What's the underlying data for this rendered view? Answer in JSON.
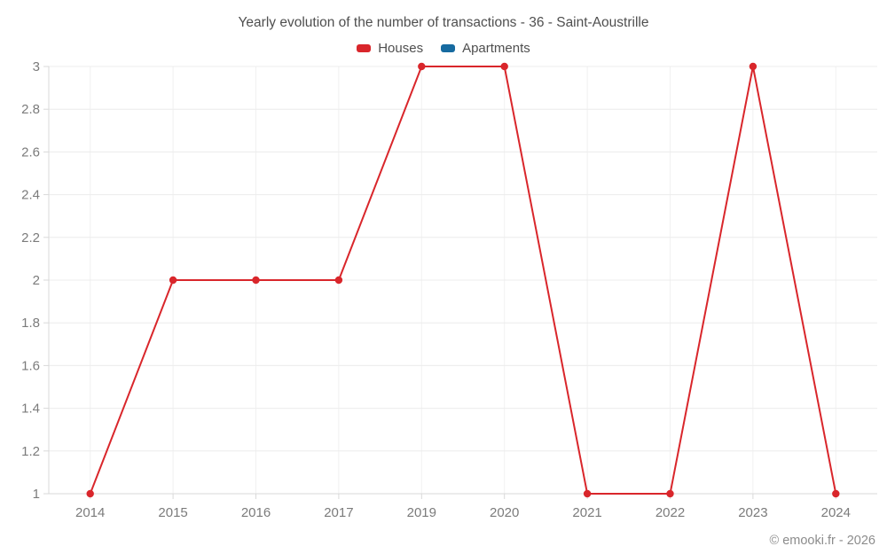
{
  "title": "Yearly evolution of the number of transactions - 36 - Saint-Aoustrille",
  "legend": [
    {
      "label": "Houses",
      "color": "#d9262b"
    },
    {
      "label": "Apartments",
      "color": "#166aa0"
    }
  ],
  "watermark": "© emooki.fr - 2026",
  "colors": {
    "houses": "#d9262b",
    "apartments": "#166aa0",
    "grid": "#ececec",
    "grid_vertical": "#f1f1f1",
    "axis": "#d9d9d9",
    "tick_text": "#7b7b7b"
  },
  "chart_data": {
    "type": "line",
    "title": "Yearly evolution of the number of transactions - 36 - Saint-Aoustrille",
    "categories": [
      "2014",
      "2015",
      "2016",
      "2017",
      "2019",
      "2020",
      "2021",
      "2022",
      "2023",
      "2024"
    ],
    "series": [
      {
        "name": "Houses",
        "color": "#d9262b",
        "values": [
          1,
          2,
          2,
          2,
          3,
          3,
          1,
          1,
          3,
          1
        ]
      },
      {
        "name": "Apartments",
        "color": "#166aa0",
        "values": []
      }
    ],
    "xlabel": "",
    "ylabel": "",
    "ylim": [
      1,
      3
    ],
    "yticks": [
      1,
      1.2,
      1.4,
      1.6,
      1.8,
      2,
      2.2,
      2.4,
      2.6,
      2.8,
      3
    ],
    "ytick_labels": [
      "1",
      "1.2",
      "1.4",
      "1.6",
      "1.8",
      "2",
      "2.2",
      "2.4",
      "2.6",
      "2.8",
      "3"
    ],
    "grid": true,
    "legend_position": "top",
    "marker": "circle"
  }
}
